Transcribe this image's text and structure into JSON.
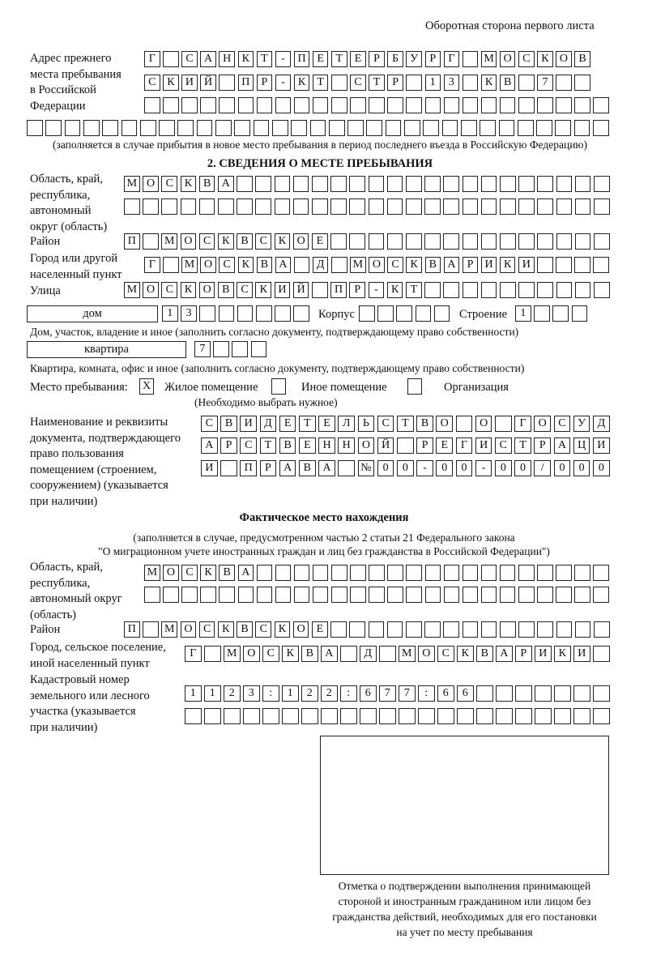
{
  "header": "Оборотная сторона первого листа",
  "previous_address": {
    "label": [
      "Адрес прежнего",
      "места пребывания",
      "в Российской",
      "Федерации"
    ],
    "rows": [
      [
        "Г",
        "",
        "С",
        "А",
        "Н",
        "К",
        "Т",
        "-",
        "П",
        "Е",
        "Т",
        "Е",
        "Р",
        "Б",
        "У",
        "Р",
        "Г",
        "",
        "М",
        "О",
        "С",
        "К",
        "О",
        "В"
      ],
      [
        "С",
        "К",
        "И",
        "Й",
        "",
        "П",
        "Р",
        "-",
        "К",
        "Т",
        "",
        "С",
        "Т",
        "Р",
        "",
        "1",
        "3",
        "",
        "К",
        "В",
        "",
        "7",
        "",
        ""
      ],
      [],
      []
    ],
    "note": "(заполняется в случае прибытия в новое место пребывания в период последнего въезда в Российскую Федерацию)"
  },
  "section2": {
    "title": "2. СВЕДЕНИЯ О МЕСТЕ ПРЕБЫВАНИЯ",
    "region_label": [
      "Область, край,",
      "республика,",
      "автономный",
      "округ (область)"
    ],
    "region_rows": [
      [
        "М",
        "О",
        "С",
        "К",
        "В",
        "А"
      ],
      []
    ],
    "district_label": "Район",
    "district": [
      "П",
      "",
      "М",
      "О",
      "С",
      "К",
      "В",
      "С",
      "К",
      "О",
      "Е"
    ],
    "city_label": [
      "Город или другой",
      "населенный пункт"
    ],
    "city": [
      "Г",
      "",
      "М",
      "О",
      "С",
      "К",
      "В",
      "А",
      "",
      "Д",
      "",
      "М",
      "О",
      "С",
      "К",
      "В",
      "А",
      "Р",
      "И",
      "К",
      "И"
    ],
    "street_label": "Улица",
    "street": [
      "М",
      "О",
      "С",
      "К",
      "О",
      "В",
      "С",
      "К",
      "И",
      "Й",
      "",
      "П",
      "Р",
      "-",
      "К",
      "Т"
    ],
    "house_type": "дом",
    "house": [
      "1",
      "3"
    ],
    "korpus_label": "Корпус",
    "korpus": [],
    "building_label": "Строение",
    "building": [
      "1"
    ],
    "house_note": "Дом, участок, владение и иное (заполнить согласно документу, подтверждающему право собственности)",
    "flat_type": "квартира",
    "flat": [
      "7"
    ],
    "flat_note": "Квартира, комната, офис и иное (заполнить согласно документу, подтверждающему право собственности)",
    "stay_label": "Место пребывания:",
    "stay_options": [
      {
        "label": "Жилое помещение",
        "mark": "X"
      },
      {
        "label": "Иное помещение",
        "mark": ""
      },
      {
        "label": "Организация",
        "mark": ""
      }
    ],
    "stay_note": "(Необходимо выбрать нужное)",
    "doc_label": [
      "Наименование и реквизиты",
      "документа, подтверждающего",
      "право пользования",
      "помещением (строением,",
      "сооружением) (указывается",
      "при наличии)"
    ],
    "doc_rows": [
      [
        "С",
        "В",
        "И",
        "Д",
        "Е",
        "Т",
        "Е",
        "Л",
        "Ь",
        "С",
        "Т",
        "В",
        "О",
        "",
        "О",
        "",
        "Г",
        "О",
        "С",
        "У",
        "Д"
      ],
      [
        "А",
        "Р",
        "С",
        "Т",
        "В",
        "Е",
        "Н",
        "Н",
        "О",
        "Й",
        "",
        "Р",
        "Е",
        "Г",
        "И",
        "С",
        "Т",
        "Р",
        "А",
        "Ц",
        "И"
      ],
      [
        "И",
        "",
        "П",
        "Р",
        "А",
        "В",
        "А",
        "",
        "№",
        "0",
        "0",
        "-",
        "0",
        "0",
        "-",
        "0",
        "0",
        "/",
        "0",
        "0",
        "0"
      ]
    ]
  },
  "actual": {
    "title": "Фактическое место нахождения",
    "note": [
      "(заполняется в случае, предусмотренном частью 2 статьи 21 Федерального закона",
      "\"О миграционном учете иностранных граждан и лиц без гражданства в Российской Федерации\")"
    ],
    "region_label": [
      "Область, край,",
      "республика,",
      "автономный округ",
      "(область)"
    ],
    "region_rows": [
      [
        "М",
        "О",
        "С",
        "К",
        "В",
        "А"
      ],
      []
    ],
    "district_label": "Район",
    "district": [
      "П",
      "",
      "М",
      "О",
      "С",
      "К",
      "В",
      "С",
      "К",
      "О",
      "Е"
    ],
    "city_label": [
      "Город, сельское поселение,",
      "иной населенный пункт"
    ],
    "city": [
      "Г",
      "",
      "М",
      "О",
      "С",
      "К",
      "В",
      "А",
      "",
      "Д",
      "",
      "М",
      "О",
      "С",
      "К",
      "В",
      "А",
      "Р",
      "И",
      "К",
      "И"
    ],
    "cadastre_label": [
      "Кадастровый номер",
      "земельного или лесного",
      "участка (указывается",
      "при наличии)"
    ],
    "cadastre_rows": [
      [
        "1",
        "1",
        "2",
        "3",
        ":",
        "1",
        "2",
        "2",
        ":",
        "6",
        "7",
        "7",
        ":",
        "6",
        "6"
      ],
      []
    ]
  },
  "stamp_caption": [
    "Отметка о подтверждении выполнения принимающей",
    "стороной и иностранным гражданином или лицом без",
    "гражданства действий, необходимых для его постановки",
    "на учет по месту пребывания"
  ]
}
